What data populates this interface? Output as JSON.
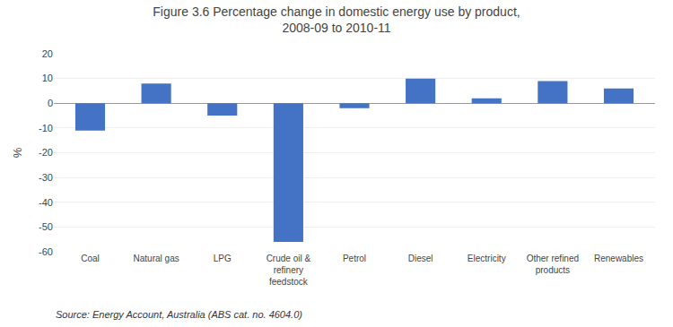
{
  "chart_data": {
    "type": "bar",
    "title": "Figure 3.6 Percentage change in domestic energy use by product,\n2008-09 to 2010-11",
    "categories": [
      "Coal",
      "Natural gas",
      "LPG",
      "Crude oil &\nrefinery\nfeedstock",
      "Petrol",
      "Diesel",
      "Electricity",
      "Other refined\nproducts",
      "Renewables"
    ],
    "values": [
      -11,
      8,
      -5,
      -56,
      -2,
      10,
      2,
      9,
      6
    ],
    "color": "#4472C4",
    "ylabel": "%",
    "ylim": [
      -60,
      20
    ],
    "yticks": [
      -60,
      -50,
      -40,
      -30,
      -20,
      -10,
      0,
      10,
      20
    ],
    "grid": true,
    "annotations": [
      "Source: Energy Account, Australia (ABS cat. no. 4604.0)"
    ]
  }
}
